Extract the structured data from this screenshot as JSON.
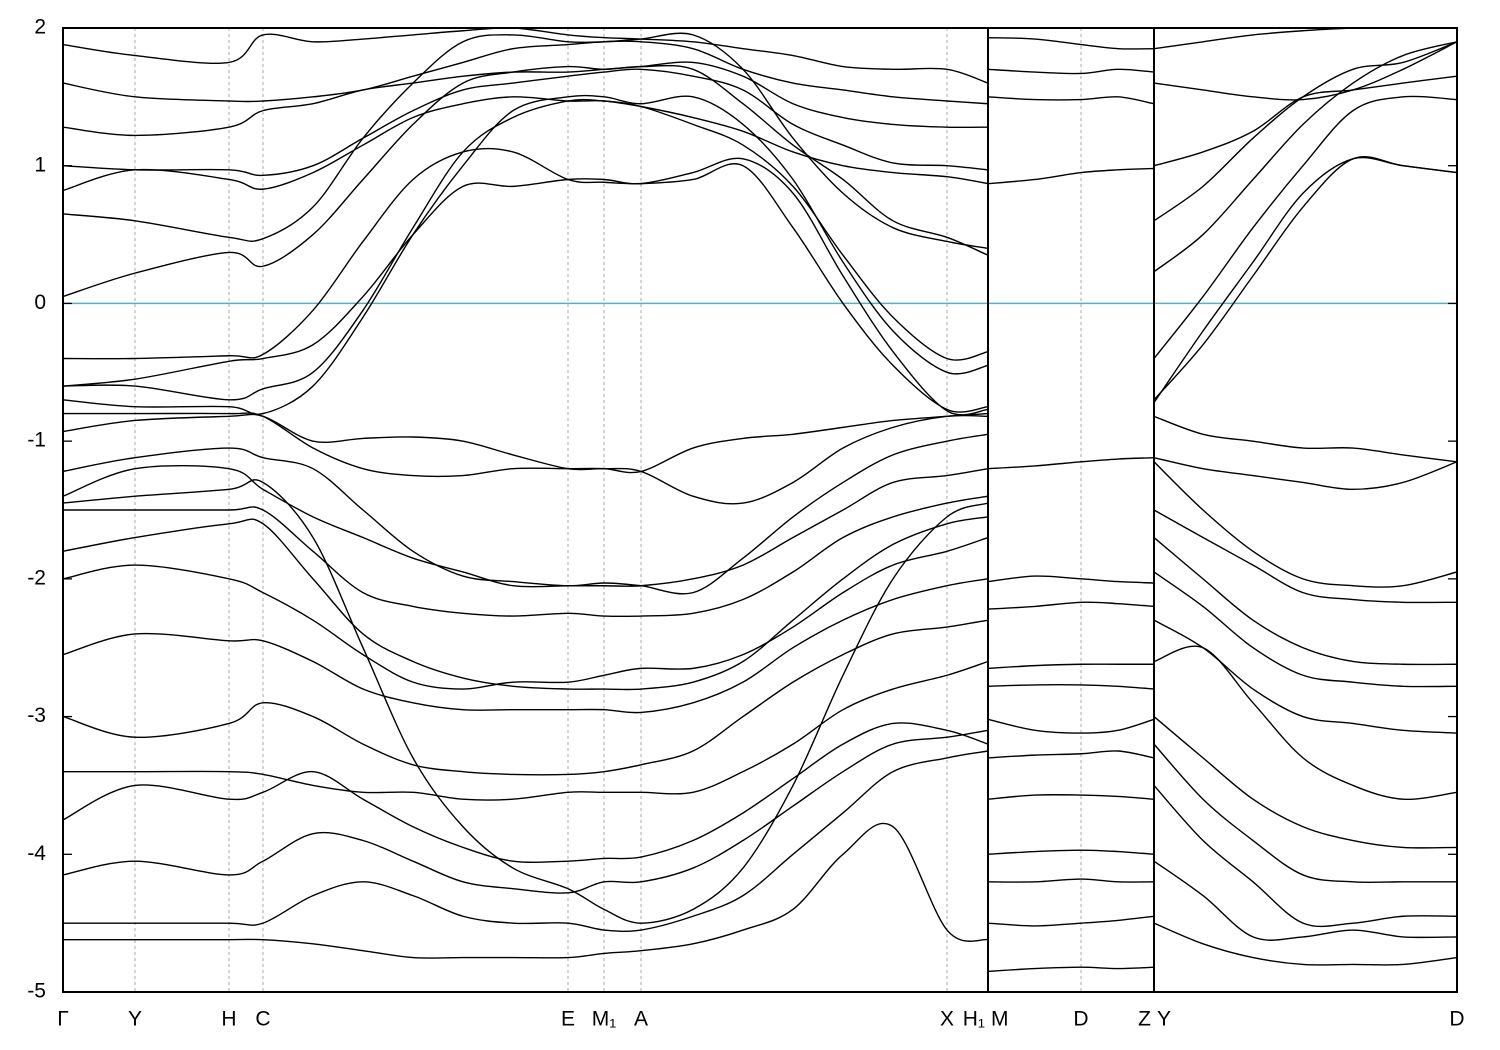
{
  "chart_data": [
    {
      "type": "line",
      "color": "#000000",
      "ylim": [
        -5,
        2
      ],
      "yticks": [
        -5,
        -4,
        -3,
        -2,
        -1,
        0,
        1,
        2
      ],
      "reference_line": {
        "value": 0,
        "color": "#5aaec8"
      },
      "grid": "x",
      "xlim": [
        0,
        925
      ],
      "xticks": [
        {
          "value": 0,
          "label": "Γ"
        },
        {
          "value": 72,
          "label": "Y"
        },
        {
          "value": 166,
          "label": "H"
        },
        {
          "value": 200,
          "label": "C"
        },
        {
          "value": 505,
          "label": "E"
        },
        {
          "value": 541,
          "label": "M₁"
        },
        {
          "value": 578,
          "label": "A"
        },
        {
          "value": 884,
          "label": "X"
        },
        {
          "value": 925,
          "label": "H₁"
        }
      ],
      "x": [
        0,
        72,
        166,
        200,
        250,
        300,
        350,
        400,
        450,
        505,
        541,
        578,
        630,
        680,
        730,
        780,
        830,
        884,
        925
      ],
      "series": [
        {
          "values": [
            -0.4,
            -0.4,
            -0.38,
            -0.37,
            -0.05,
            0.45,
            0.9,
            1.1,
            1.1,
            0.9,
            0.88,
            0.87,
            0.9,
            1.0,
            0.55,
            0.0,
            -0.45,
            -0.77,
            -0.75
          ]
        },
        {
          "values": [
            -0.6,
            -0.55,
            -0.42,
            -0.4,
            -0.3,
            0.05,
            0.5,
            0.85,
            0.85,
            0.9,
            0.9,
            0.87,
            0.95,
            1.05,
            0.8,
            0.2,
            -0.35,
            -0.78,
            -0.77
          ]
        },
        {
          "values": [
            -0.6,
            -0.6,
            -0.7,
            -0.62,
            -0.5,
            -0.05,
            0.55,
            1.1,
            1.35,
            1.47,
            1.47,
            1.43,
            1.3,
            1.15,
            0.85,
            0.35,
            -0.1,
            -0.4,
            -0.35
          ]
        },
        {
          "values": [
            -0.7,
            -0.75,
            -0.75,
            -0.8,
            -0.6,
            -0.1,
            0.5,
            1.0,
            1.4,
            1.5,
            1.5,
            1.45,
            1.5,
            1.3,
            0.9,
            0.3,
            -0.2,
            -0.5,
            -0.45
          ]
        },
        {
          "values": [
            0.65,
            0.6,
            0.48,
            0.47,
            0.7,
            1.2,
            1.6,
            1.9,
            1.95,
            1.9,
            1.9,
            1.92,
            1.95,
            1.7,
            1.2,
            0.8,
            0.55,
            0.45,
            0.4
          ]
        },
        {
          "values": [
            0.05,
            0.22,
            0.37,
            0.27,
            0.5,
            0.9,
            1.3,
            1.6,
            1.68,
            1.72,
            1.7,
            1.72,
            1.7,
            1.45,
            1.15,
            0.9,
            0.6,
            0.48,
            0.35
          ]
        },
        {
          "values": [
            0.82,
            0.97,
            0.9,
            0.83,
            0.95,
            1.15,
            1.35,
            1.45,
            1.5,
            1.47,
            1.47,
            1.43,
            1.35,
            1.25,
            1.1,
            1.0,
            0.95,
            0.92,
            0.87
          ]
        },
        {
          "values": [
            1.0,
            0.97,
            0.97,
            0.93,
            1.0,
            1.2,
            1.4,
            1.55,
            1.6,
            1.65,
            1.68,
            1.7,
            1.65,
            1.55,
            1.3,
            1.15,
            1.02,
            1.0,
            0.97
          ]
        },
        {
          "values": [
            1.28,
            1.22,
            1.28,
            1.4,
            1.45,
            1.55,
            1.6,
            1.65,
            1.68,
            1.68,
            1.7,
            1.72,
            1.75,
            1.65,
            1.45,
            1.35,
            1.3,
            1.28,
            1.28
          ]
        },
        {
          "values": [
            1.6,
            1.5,
            1.47,
            1.47,
            1.5,
            1.55,
            1.65,
            1.75,
            1.85,
            1.88,
            1.9,
            1.9,
            1.85,
            1.7,
            1.6,
            1.55,
            1.5,
            1.47,
            1.45
          ]
        },
        {
          "values": [
            1.88,
            1.8,
            1.75,
            1.95,
            1.9,
            1.92,
            1.95,
            1.98,
            2.0,
            1.95,
            1.93,
            1.92,
            1.9,
            1.85,
            1.8,
            1.72,
            1.7,
            1.7,
            1.6
          ]
        },
        {
          "values": [
            -0.93,
            -0.85,
            -0.82,
            -0.82,
            -1.0,
            -0.98,
            -0.97,
            -1.0,
            -1.1,
            -1.2,
            -1.2,
            -1.22,
            -1.4,
            -1.45,
            -1.3,
            -1.05,
            -0.9,
            -0.82,
            -0.82
          ]
        },
        {
          "values": [
            -0.8,
            -0.8,
            -0.8,
            -0.82,
            -1.05,
            -1.2,
            -1.25,
            -1.25,
            -1.2,
            -1.2,
            -1.2,
            -1.22,
            -1.05,
            -0.98,
            -0.95,
            -0.9,
            -0.85,
            -0.82,
            -0.8
          ]
        },
        {
          "values": [
            -1.22,
            -1.12,
            -1.05,
            -1.12,
            -1.2,
            -1.5,
            -1.8,
            -1.98,
            -2.02,
            -2.05,
            -2.03,
            -2.05,
            -2.1,
            -1.85,
            -1.55,
            -1.3,
            -1.1,
            -1.0,
            -0.95
          ]
        },
        {
          "values": [
            -1.4,
            -1.2,
            -1.2,
            -1.35,
            -1.55,
            -1.7,
            -1.85,
            -1.95,
            -2.05,
            -2.05,
            -2.05,
            -2.05,
            -2.0,
            -1.9,
            -1.7,
            -1.5,
            -1.3,
            -1.25,
            -1.2
          ]
        },
        {
          "values": [
            -1.5,
            -1.5,
            -1.5,
            -1.5,
            -1.8,
            -2.1,
            -2.2,
            -2.25,
            -2.27,
            -2.25,
            -2.27,
            -2.27,
            -2.25,
            -2.15,
            -1.95,
            -1.7,
            -1.55,
            -1.45,
            -1.4
          ]
        },
        {
          "values": [
            -1.8,
            -1.7,
            -1.6,
            -1.6,
            -2.0,
            -2.4,
            -2.6,
            -2.72,
            -2.78,
            -2.8,
            -2.8,
            -2.8,
            -2.75,
            -2.6,
            -2.3,
            -2.0,
            -1.75,
            -1.6,
            -1.55
          ]
        },
        {
          "values": [
            -2.0,
            -1.9,
            -2.0,
            -2.1,
            -2.3,
            -2.55,
            -2.75,
            -2.8,
            -2.75,
            -2.75,
            -2.7,
            -2.65,
            -2.65,
            -2.55,
            -2.35,
            -2.1,
            -1.9,
            -1.8,
            -1.7
          ]
        },
        {
          "values": [
            -2.55,
            -2.4,
            -2.45,
            -2.45,
            -2.6,
            -2.8,
            -2.9,
            -2.95,
            -2.95,
            -2.95,
            -2.95,
            -2.97,
            -2.9,
            -2.75,
            -2.5,
            -2.3,
            -2.15,
            -2.05,
            -2.0
          ]
        },
        {
          "values": [
            -3.0,
            -3.15,
            -3.05,
            -2.9,
            -3.0,
            -3.2,
            -3.35,
            -3.4,
            -3.42,
            -3.42,
            -3.4,
            -3.35,
            -3.25,
            -3.0,
            -2.75,
            -2.55,
            -2.4,
            -2.35,
            -2.3
          ]
        },
        {
          "values": [
            -3.4,
            -3.4,
            -3.4,
            -3.42,
            -3.5,
            -3.55,
            -3.55,
            -3.6,
            -3.6,
            -3.55,
            -3.55,
            -3.55,
            -3.55,
            -3.4,
            -3.2,
            -2.95,
            -2.8,
            -2.7,
            -2.6
          ]
        },
        {
          "values": [
            -3.75,
            -3.5,
            -3.6,
            -3.55,
            -3.4,
            -3.6,
            -3.8,
            -3.95,
            -4.05,
            -4.05,
            -4.03,
            -4.02,
            -3.9,
            -3.7,
            -3.45,
            -3.2,
            -3.05,
            -3.1,
            -3.2
          ]
        },
        {
          "values": [
            -4.15,
            -4.05,
            -4.15,
            -4.05,
            -3.85,
            -3.9,
            -4.05,
            -4.2,
            -4.25,
            -4.28,
            -4.2,
            -4.2,
            -4.1,
            -3.9,
            -3.65,
            -3.4,
            -3.2,
            -3.15,
            -3.1
          ]
        },
        {
          "values": [
            -4.5,
            -4.5,
            -4.5,
            -4.5,
            -4.3,
            -4.2,
            -4.3,
            -4.45,
            -4.5,
            -4.5,
            -4.55,
            -4.55,
            -4.45,
            -4.3,
            -4.0,
            -3.7,
            -3.4,
            -3.3,
            -3.25
          ]
        },
        {
          "values": [
            -4.62,
            -4.62,
            -4.62,
            -4.62,
            -4.65,
            -4.7,
            -4.75,
            -4.75,
            -4.75,
            -4.75,
            -4.72,
            -4.7,
            -4.65,
            -4.55,
            -4.4,
            -4.0,
            -3.8,
            -4.55,
            -4.62
          ]
        },
        {
          "values": [
            -1.45,
            -1.4,
            -1.35,
            -1.3,
            -1.7,
            -2.5,
            -3.3,
            -3.8,
            -4.1,
            -4.25,
            -4.4,
            -4.5,
            -4.4,
            -4.1,
            -3.5,
            -2.7,
            -2.0,
            -1.55,
            -1.45
          ]
        }
      ]
    },
    {
      "type": "line",
      "color": "#000000",
      "grid": "x",
      "xlim": [
        925,
        1091
      ],
      "xticks": [
        {
          "value": 925,
          "label": "M"
        },
        {
          "value": 1018,
          "label": "D"
        },
        {
          "value": 1091,
          "label": "Z"
        }
      ],
      "x": [
        925,
        972,
        1018,
        1055,
        1091
      ],
      "series": [
        {
          "values": [
            1.93,
            1.92,
            1.88,
            1.85,
            1.85
          ]
        },
        {
          "values": [
            1.7,
            1.68,
            1.67,
            1.7,
            1.68
          ]
        },
        {
          "values": [
            1.5,
            1.48,
            1.48,
            1.5,
            1.45
          ]
        },
        {
          "values": [
            0.87,
            0.9,
            0.95,
            0.97,
            0.98
          ]
        },
        {
          "values": [
            -1.2,
            -1.18,
            -1.15,
            -1.13,
            -1.12
          ]
        },
        {
          "values": [
            -2.02,
            -1.98,
            -2.0,
            -2.02,
            -2.03
          ]
        },
        {
          "values": [
            -2.22,
            -2.2,
            -2.17,
            -2.18,
            -2.2
          ]
        },
        {
          "values": [
            -2.65,
            -2.63,
            -2.62,
            -2.62,
            -2.62
          ]
        },
        {
          "values": [
            -2.78,
            -2.77,
            -2.77,
            -2.78,
            -2.8
          ]
        },
        {
          "values": [
            -3.02,
            -3.1,
            -3.12,
            -3.1,
            -3.02
          ]
        },
        {
          "values": [
            -3.3,
            -3.28,
            -3.27,
            -3.25,
            -3.3
          ]
        },
        {
          "values": [
            -3.6,
            -3.57,
            -3.57,
            -3.58,
            -3.6
          ]
        },
        {
          "values": [
            -4.0,
            -3.98,
            -3.97,
            -3.98,
            -4.0
          ]
        },
        {
          "values": [
            -4.2,
            -4.2,
            -4.18,
            -4.2,
            -4.2
          ]
        },
        {
          "values": [
            -4.5,
            -4.52,
            -4.5,
            -4.48,
            -4.45
          ]
        },
        {
          "values": [
            -4.85,
            -4.83,
            -4.82,
            -4.83,
            -4.82
          ]
        }
      ]
    },
    {
      "type": "line",
      "color": "#000000",
      "grid": "x",
      "xlim": [
        1091,
        1394
      ],
      "xticks": [
        {
          "value": 1091,
          "label": "Y"
        },
        {
          "value": 1394,
          "label": "D"
        }
      ],
      "x": [
        1091,
        1140,
        1190,
        1240,
        1290,
        1340,
        1394
      ],
      "series": [
        {
          "values": [
            -0.7,
            -0.3,
            0.2,
            0.7,
            1.05,
            1.0,
            0.95
          ]
        },
        {
          "values": [
            -0.72,
            -0.2,
            0.3,
            0.8,
            1.05,
            1.0,
            0.95
          ]
        },
        {
          "values": [
            -0.4,
            0.05,
            0.55,
            1.0,
            1.4,
            1.5,
            1.48
          ]
        },
        {
          "values": [
            0.23,
            0.5,
            0.9,
            1.3,
            1.6,
            1.8,
            1.9
          ]
        },
        {
          "values": [
            0.6,
            0.85,
            1.2,
            1.5,
            1.7,
            1.75,
            1.9
          ]
        },
        {
          "values": [
            1.0,
            1.1,
            1.25,
            1.5,
            1.55,
            1.6,
            1.65
          ]
        },
        {
          "values": [
            1.6,
            1.55,
            1.5,
            1.48,
            1.55,
            1.7,
            1.9
          ]
        },
        {
          "values": [
            1.85,
            1.9,
            1.95,
            1.98,
            2.0,
            2.0,
            2.0
          ]
        },
        {
          "values": [
            -0.82,
            -0.95,
            -1.0,
            -1.05,
            -1.05,
            -1.1,
            -1.15
          ]
        },
        {
          "values": [
            -1.12,
            -1.2,
            -1.25,
            -1.3,
            -1.35,
            -1.3,
            -1.15
          ]
        },
        {
          "values": [
            -1.15,
            -1.5,
            -1.8,
            -2.0,
            -2.05,
            -2.05,
            -1.95
          ]
        },
        {
          "values": [
            -1.5,
            -1.7,
            -1.9,
            -2.1,
            -2.15,
            -2.17,
            -2.17
          ]
        },
        {
          "values": [
            -1.7,
            -2.0,
            -2.3,
            -2.5,
            -2.6,
            -2.62,
            -2.62
          ]
        },
        {
          "values": [
            -1.95,
            -2.2,
            -2.5,
            -2.7,
            -2.75,
            -2.78,
            -2.78
          ]
        },
        {
          "values": [
            -2.3,
            -2.5,
            -2.8,
            -3.0,
            -3.05,
            -3.1,
            -3.12
          ]
        },
        {
          "values": [
            -2.6,
            -2.5,
            -2.9,
            -3.3,
            -3.5,
            -3.6,
            -3.55
          ]
        },
        {
          "values": [
            -3.0,
            -3.3,
            -3.6,
            -3.8,
            -3.9,
            -3.95,
            -3.95
          ]
        },
        {
          "values": [
            -3.2,
            -3.6,
            -3.9,
            -4.15,
            -4.2,
            -4.2,
            -4.2
          ]
        },
        {
          "values": [
            -3.5,
            -3.9,
            -4.2,
            -4.5,
            -4.5,
            -4.45,
            -4.45
          ]
        },
        {
          "values": [
            -4.05,
            -4.3,
            -4.6,
            -4.6,
            -4.55,
            -4.6,
            -4.6
          ]
        },
        {
          "values": [
            -4.5,
            -4.65,
            -4.75,
            -4.8,
            -4.8,
            -4.8,
            -4.75
          ]
        }
      ]
    }
  ]
}
